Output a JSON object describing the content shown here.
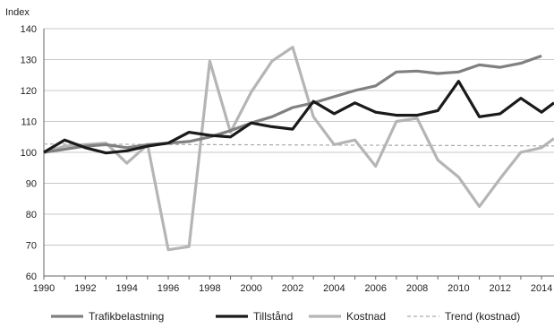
{
  "chart_data": {
    "type": "line",
    "ylabel": "Index",
    "xlabel": "",
    "ylim": [
      60,
      140
    ],
    "xlim": [
      1990,
      2014.6
    ],
    "y_ticks": [
      60,
      70,
      80,
      90,
      100,
      110,
      120,
      130,
      140
    ],
    "x_ticks": [
      1990,
      1992,
      1994,
      1996,
      1998,
      2000,
      2002,
      2004,
      2006,
      2008,
      2010,
      2012,
      2014
    ],
    "grid": "horizontal",
    "legend_position": "bottom",
    "series": [
      {
        "name": "Trafikbelastning",
        "color": "#808080",
        "style": "solid",
        "x": [
          1990,
          1991,
          1992,
          1993,
          1994,
          1995,
          1996,
          1997,
          1998,
          1999,
          2000,
          2001,
          2002,
          2003,
          2004,
          2005,
          2006,
          2007,
          2008,
          2009,
          2010,
          2011,
          2012,
          2013,
          2014
        ],
        "values": [
          100,
          101,
          102,
          102.5,
          101.5,
          102.5,
          103,
          103.5,
          105,
          107,
          109.5,
          111.5,
          114.5,
          116,
          118,
          120,
          121.5,
          126,
          126.3,
          125.5,
          126,
          128.3,
          127.5,
          128.8,
          131.2
        ]
      },
      {
        "name": "Tillstånd",
        "color": "#1a1a1a",
        "style": "solid",
        "x": [
          1990,
          1991,
          1992,
          1993,
          1994,
          1995,
          1996,
          1997,
          1998,
          1999,
          2000,
          2001,
          2002,
          2003,
          2004,
          2005,
          2006,
          2007,
          2008,
          2009,
          2010,
          2011,
          2012,
          2013,
          2014,
          2014.6
        ],
        "values": [
          100,
          104,
          101.5,
          99.8,
          100.5,
          102,
          103,
          106.5,
          105.5,
          105,
          109.5,
          108.3,
          107.5,
          116.5,
          112.5,
          116,
          113,
          112,
          112,
          113.5,
          123,
          111.5,
          112.5,
          117.5,
          113,
          116
        ]
      },
      {
        "name": "Kostnad",
        "color": "#b5b5b5",
        "style": "solid",
        "x": [
          1990,
          1991,
          1992,
          1993,
          1994,
          1995,
          1996,
          1997,
          1998,
          1999,
          2000,
          2001,
          2002,
          2003,
          2004,
          2005,
          2006,
          2007,
          2008,
          2009,
          2010,
          2011,
          2012,
          2013,
          2014,
          2014.6
        ],
        "values": [
          100,
          102,
          102.5,
          103,
          96.5,
          102.5,
          68.5,
          69.5,
          129.5,
          106.5,
          119.5,
          129.5,
          134,
          111.5,
          102.5,
          104,
          95.5,
          110,
          111,
          97.5,
          92,
          82.5,
          91.5,
          100,
          101.5,
          104.5
        ]
      },
      {
        "name": "Trend (kostnad)",
        "color": "#aaaaaa",
        "style": "dashed",
        "x": [
          1990,
          2014.6
        ],
        "values": [
          102.7,
          102.1
        ]
      }
    ]
  }
}
